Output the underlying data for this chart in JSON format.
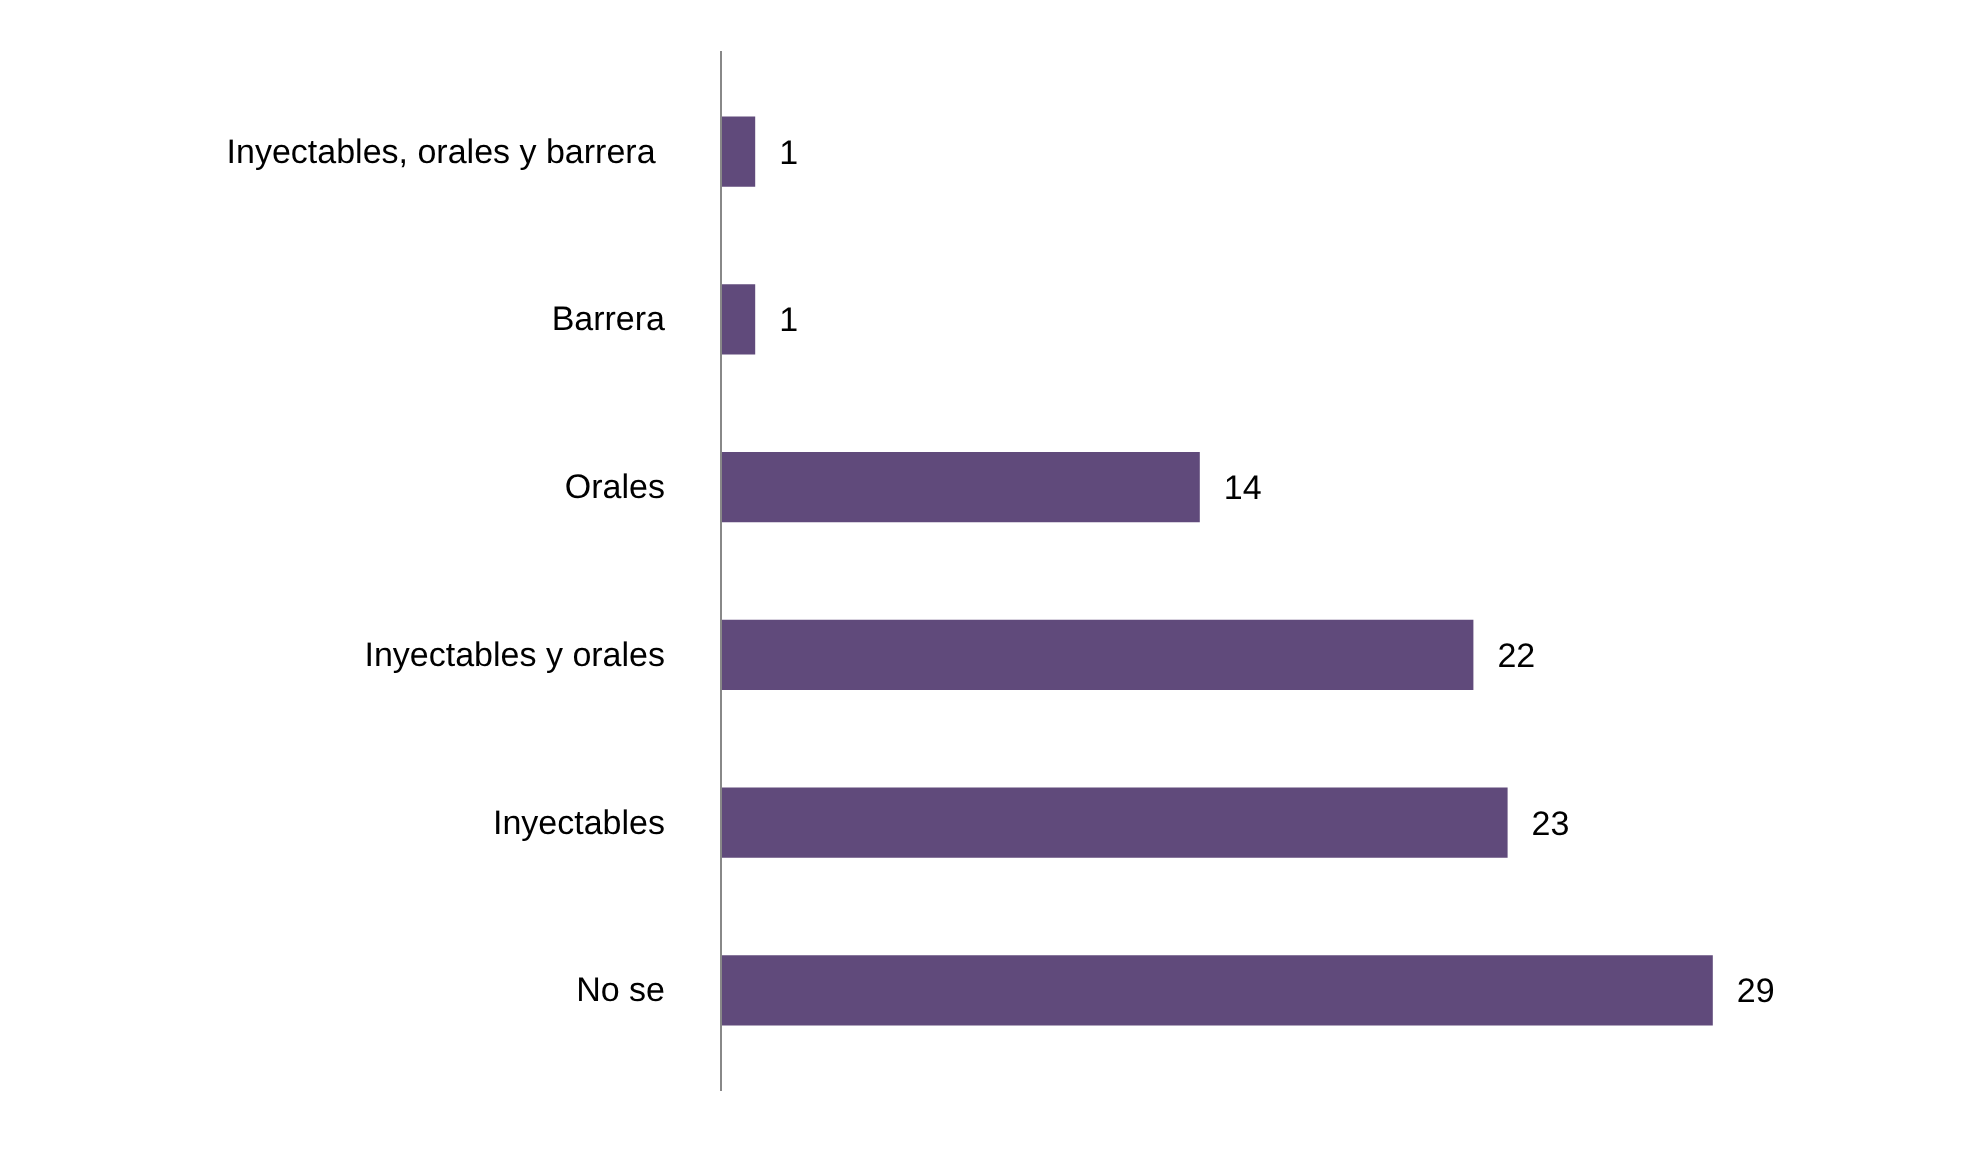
{
  "chart_data": {
    "type": "bar",
    "orientation": "horizontal",
    "categories": [
      "Inyectables, orales y  barrera",
      "Barrera",
      "Orales",
      "Inyectables y orales",
      "Inyectables",
      "No se"
    ],
    "values": [
      1,
      1,
      14,
      22,
      23,
      29
    ],
    "color": "#604a7b",
    "data_labels": true,
    "grid": false
  }
}
